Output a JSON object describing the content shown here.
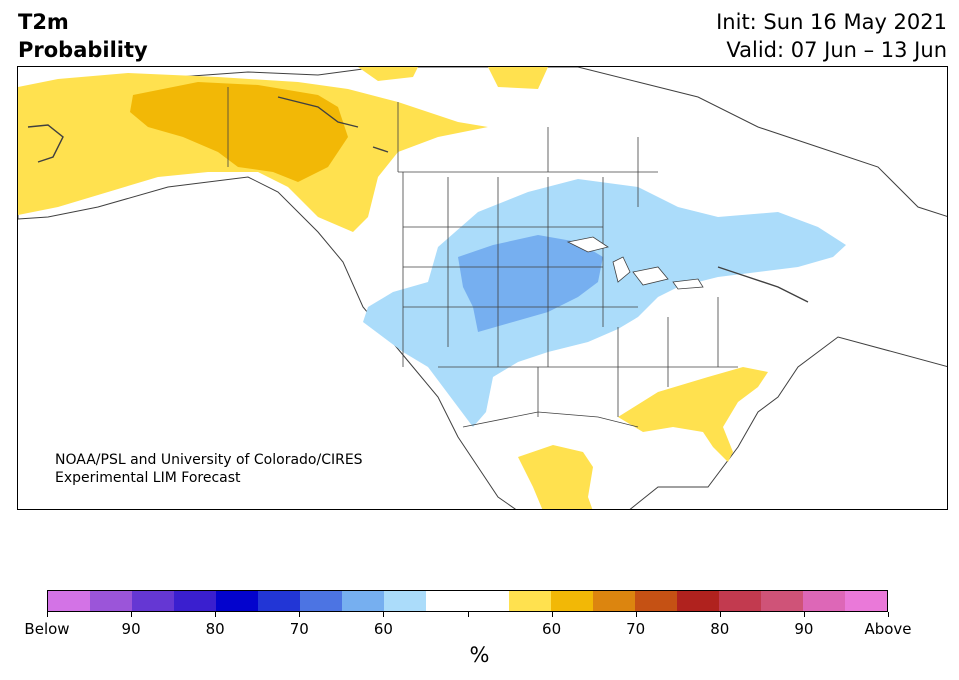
{
  "header": {
    "variable": "T2m",
    "product": "Probability",
    "init": "Init: Sun 16 May 2021",
    "valid": "Valid: 07 Jun – 13 Jun"
  },
  "map": {
    "region": "North America",
    "credit_line1": "NOAA/PSL and University of Colorado/CIRES",
    "credit_line2": "Experimental LIM Forecast",
    "colors": {
      "below_50_60": "#abdcfa",
      "below_60_70": "#76aff0",
      "above_50_60": "#ffe14f",
      "above_60_70": "#f2b806",
      "ocean": "#ffffff",
      "border": "#404040"
    }
  },
  "colorbar": {
    "colors": [
      "#d373e6",
      "#9b55d9",
      "#6537d3",
      "#3a1fcf",
      "#0303cd",
      "#2236d6",
      "#4c74e3",
      "#76aff0",
      "#abdcfa",
      "#ffffff",
      "#ffffff",
      "#ffe14f",
      "#f2b806",
      "#dc850f",
      "#c55114",
      "#b0221e",
      "#c23a4f",
      "#cf5378",
      "#dd67b7",
      "#ea79d9"
    ],
    "labels": [
      "Below",
      "90",
      "80",
      "70",
      "60",
      "",
      "60",
      "70",
      "80",
      "90",
      "Above"
    ],
    "unit": "%"
  }
}
